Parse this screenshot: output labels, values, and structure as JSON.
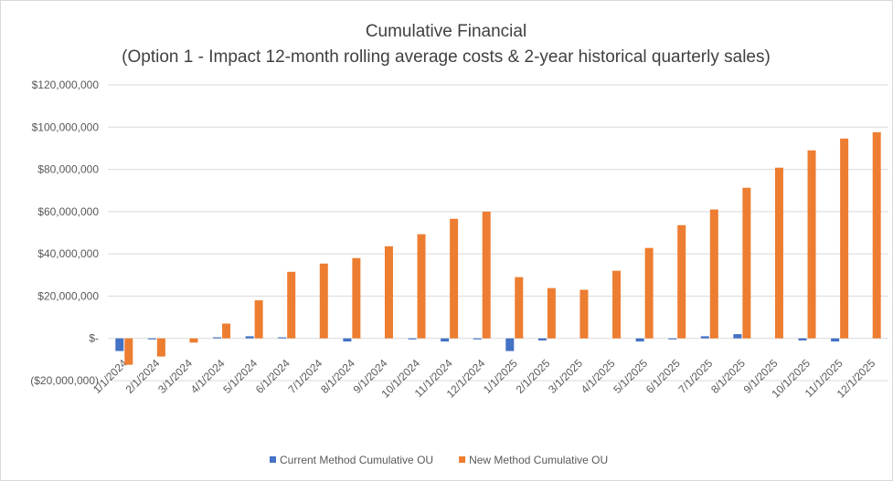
{
  "chart_data": {
    "type": "bar",
    "title": "Cumulative Financial",
    "subtitle": "(Option 1 - Impact 12-month rolling average costs & 2-year historical quarterly sales)",
    "categories": [
      "1/1/2024",
      "2/1/2024",
      "3/1/2024",
      "4/1/2024",
      "5/1/2024",
      "6/1/2024",
      "7/1/2024",
      "8/1/2024",
      "9/1/2024",
      "10/1/2024",
      "11/1/2024",
      "12/1/2024",
      "1/1/2025",
      "2/1/2025",
      "3/1/2025",
      "4/1/2025",
      "5/1/2025",
      "6/1/2025",
      "7/1/2025",
      "8/1/2025",
      "9/1/2025",
      "10/1/2025",
      "11/1/2025",
      "12/1/2025"
    ],
    "series": [
      {
        "name": "Current Method Cumulative OU",
        "color": "#4472c4",
        "values": [
          -6000000,
          -500000,
          0,
          500000,
          1000000,
          500000,
          0,
          -1500000,
          0,
          -500000,
          -1500000,
          -500000,
          -6000000,
          -1000000,
          0,
          0,
          -1500000,
          -500000,
          1000000,
          2000000,
          0,
          -1000000,
          -1500000,
          0
        ]
      },
      {
        "name": "New Method Cumulative OU",
        "color": "#ed7d31",
        "values": [
          -12500000,
          -8600000,
          -2000000,
          7000000,
          18000000,
          31500000,
          35400000,
          38000000,
          43600000,
          49300000,
          56600000,
          60000000,
          29000000,
          23800000,
          23000000,
          32000000,
          42800000,
          53600000,
          61000000,
          71300000,
          80800000,
          89000000,
          94600000,
          97600000
        ]
      }
    ],
    "ylim": [
      -20000000,
      120000000
    ],
    "yticks": [
      {
        "value": -20000000,
        "label": "($20,000,000)"
      },
      {
        "value": 0,
        "label": "$-"
      },
      {
        "value": 20000000,
        "label": "$20,000,000"
      },
      {
        "value": 40000000,
        "label": "$40,000,000"
      },
      {
        "value": 60000000,
        "label": "$60,000,000"
      },
      {
        "value": 80000000,
        "label": "$80,000,000"
      },
      {
        "value": 100000000,
        "label": "$100,000,000"
      },
      {
        "value": 120000000,
        "label": "$120,000,000"
      }
    ],
    "grid": true
  }
}
